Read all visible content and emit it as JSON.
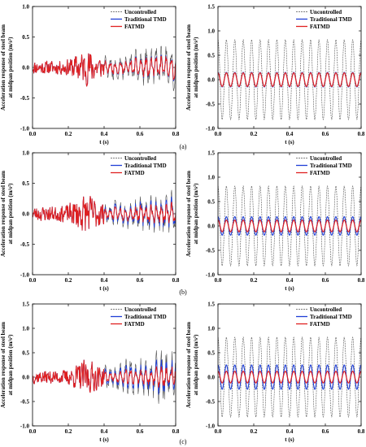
{
  "legend": [
    "Uncontrolled",
    "Traditional TMD",
    "FATMD"
  ],
  "ylabel_line1": "Acceleration response of steel beam",
  "ylabel_line2": "at midpan position  (m/s²)",
  "xlabel": "t (s)",
  "captions": [
    "(a)",
    "(b)",
    "(c)"
  ],
  "series_colors": {
    "uncontrolled": "#555555",
    "traditional": "#1f3fd6",
    "fatmd": "#e02020"
  },
  "chart_data": [
    {
      "id": "a-left",
      "type": "line",
      "row": 0,
      "col": 0,
      "xlim": [
        0.0,
        0.8
      ],
      "ylim": [
        -1.0,
        1.0
      ],
      "xticks": [
        "0.0",
        "0.2",
        "0.4",
        "0.6",
        "0.8"
      ],
      "yticks": [
        "-1.0",
        "-0.5",
        "0.0",
        "0.5",
        "1.0"
      ],
      "xtick_values": [
        0,
        0.2,
        0.4,
        0.6,
        0.8
      ],
      "ytick_values": [
        -1.0,
        -0.5,
        0.0,
        0.5,
        1.0
      ],
      "kind": "random",
      "seed": 11,
      "series": [
        {
          "name": "Uncontrolled",
          "key": "uncontrolled",
          "amp_early": 0.12,
          "amp_late": 0.38
        },
        {
          "name": "Traditional TMD",
          "key": "traditional",
          "amp_early": 0.12,
          "amp_late": 0.22
        },
        {
          "name": "FATMD",
          "key": "fatmd",
          "amp_early": 0.12,
          "amp_late": 0.2
        }
      ]
    },
    {
      "id": "a-right",
      "type": "line",
      "row": 0,
      "col": 1,
      "xlim": [
        0.0,
        0.8
      ],
      "ylim": [
        -1.0,
        1.5
      ],
      "xticks": [
        "0.0",
        "0.2",
        "0.4",
        "0.6",
        "0.8"
      ],
      "yticks": [
        "-1.0",
        "-0.5",
        "0.0",
        "0.5",
        "1.0",
        "1.5"
      ],
      "xtick_values": [
        0,
        0.2,
        0.4,
        0.6,
        0.8
      ],
      "ytick_values": [
        -1.0,
        -0.5,
        0.0,
        0.5,
        1.0,
        1.5
      ],
      "kind": "harmonic",
      "cycles": 17,
      "series": [
        {
          "name": "Uncontrolled",
          "key": "uncontrolled",
          "amplitude": 0.82
        },
        {
          "name": "Traditional TMD",
          "key": "traditional",
          "amplitude": 0.15
        },
        {
          "name": "FATMD",
          "key": "fatmd",
          "amplitude": 0.14
        }
      ]
    },
    {
      "id": "b-left",
      "type": "line",
      "row": 1,
      "col": 0,
      "xlim": [
        0.0,
        0.8
      ],
      "ylim": [
        -1.0,
        1.0
      ],
      "xticks": [
        "0.0",
        "0.2",
        "0.4",
        "0.6",
        "0.8"
      ],
      "yticks": [
        "-1.0",
        "-0.5",
        "0.0",
        "0.5",
        "1.0"
      ],
      "xtick_values": [
        0,
        0.2,
        0.4,
        0.6,
        0.8
      ],
      "ytick_values": [
        -1.0,
        -0.5,
        0.0,
        0.5,
        1.0
      ],
      "kind": "random",
      "seed": 23,
      "series": [
        {
          "name": "Uncontrolled",
          "key": "uncontrolled",
          "amp_early": 0.13,
          "amp_late": 0.36
        },
        {
          "name": "Traditional TMD",
          "key": "traditional",
          "amp_early": 0.13,
          "amp_late": 0.26
        },
        {
          "name": "FATMD",
          "key": "fatmd",
          "amp_early": 0.13,
          "amp_late": 0.18
        }
      ]
    },
    {
      "id": "b-right",
      "type": "line",
      "row": 1,
      "col": 1,
      "xlim": [
        0.0,
        0.8
      ],
      "ylim": [
        -1.0,
        1.5
      ],
      "xticks": [
        "0.0",
        "0.2",
        "0.4",
        "0.6",
        "0.8"
      ],
      "yticks": [
        "-1.0",
        "-0.5",
        "0.0",
        "0.5",
        "1.0",
        "1.5"
      ],
      "xtick_values": [
        0,
        0.2,
        0.4,
        0.6,
        0.8
      ],
      "ytick_values": [
        -1.0,
        -0.5,
        0.0,
        0.5,
        1.0,
        1.5
      ],
      "kind": "harmonic",
      "cycles": 17,
      "series": [
        {
          "name": "Uncontrolled",
          "key": "uncontrolled",
          "amplitude": 0.82
        },
        {
          "name": "Traditional TMD",
          "key": "traditional",
          "amplitude": 0.19
        },
        {
          "name": "FATMD",
          "key": "fatmd",
          "amplitude": 0.12
        }
      ]
    },
    {
      "id": "c-left",
      "type": "line",
      "row": 2,
      "col": 0,
      "xlim": [
        0.0,
        0.8
      ],
      "ylim": [
        -1.0,
        1.5
      ],
      "xticks": [
        "0.0",
        "0.2",
        "0.4",
        "0.6",
        "0.8"
      ],
      "yticks": [
        "-1.0",
        "-0.5",
        "0.0",
        "0.5",
        "1.0",
        "1.5"
      ],
      "xtick_values": [
        0,
        0.2,
        0.4,
        0.6,
        0.8
      ],
      "ytick_values": [
        -1.0,
        -0.5,
        0.0,
        0.5,
        1.0,
        1.5
      ],
      "kind": "random",
      "seed": 37,
      "series": [
        {
          "name": "Uncontrolled",
          "key": "uncontrolled",
          "amp_early": 0.14,
          "amp_late": 0.55
        },
        {
          "name": "Traditional TMD",
          "key": "traditional",
          "amp_early": 0.14,
          "amp_late": 0.36
        },
        {
          "name": "FATMD",
          "key": "fatmd",
          "amp_early": 0.14,
          "amp_late": 0.22
        }
      ]
    },
    {
      "id": "c-right",
      "type": "line",
      "row": 2,
      "col": 1,
      "xlim": [
        0.0,
        0.8
      ],
      "ylim": [
        -1.0,
        1.5
      ],
      "xticks": [
        "0.0",
        "0.2",
        "0.4",
        "0.6",
        "0.8"
      ],
      "yticks": [
        "-1.0",
        "-0.5",
        "0.0",
        "0.5",
        "1.0",
        "1.5"
      ],
      "xtick_values": [
        0,
        0.2,
        0.4,
        0.6,
        0.8
      ],
      "ytick_values": [
        -1.0,
        -0.5,
        0.0,
        0.5,
        1.0,
        1.5
      ],
      "kind": "harmonic",
      "cycles": 17,
      "series": [
        {
          "name": "Uncontrolled",
          "key": "uncontrolled",
          "amplitude": 0.82
        },
        {
          "name": "Traditional TMD",
          "key": "traditional",
          "amplitude": 0.25
        },
        {
          "name": "FATMD",
          "key": "fatmd",
          "amplitude": 0.12
        }
      ]
    }
  ]
}
